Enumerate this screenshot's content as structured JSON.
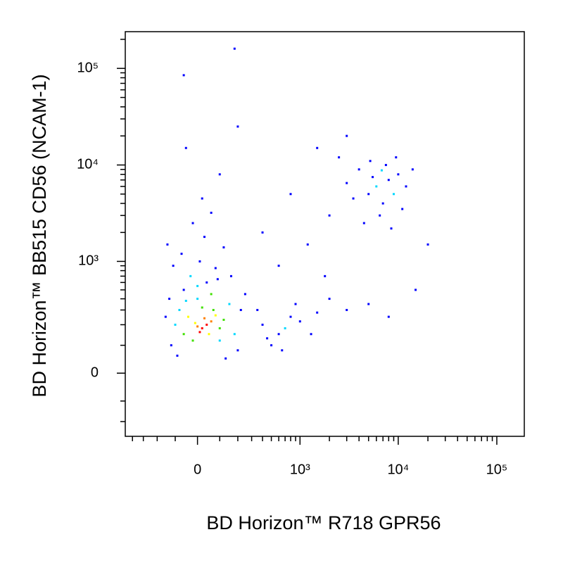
{
  "chart_data": {
    "type": "scatter",
    "xlabel": "BD Horizon™ R718 GPR56",
    "ylabel": "BD Horizon™ BB515 CD56 (NCAM-1)",
    "xscale": "biexponential",
    "yscale": "biexponential",
    "xlim": [
      -480,
      190000
    ],
    "ylim": [
      -300,
      240000
    ],
    "xticks": [
      0,
      {
        "value": 1000,
        "label": "10³"
      },
      {
        "value": 10000,
        "label": "10⁴"
      },
      {
        "value": 100000,
        "label": "10⁵"
      }
    ],
    "yticks": [
      0,
      {
        "value": 1000,
        "label": "10³"
      },
      {
        "value": 10000,
        "label": "10⁴"
      },
      {
        "value": 100000,
        "label": "10⁵"
      }
    ],
    "xminorticks": [
      -400,
      -300,
      -200,
      -100,
      100,
      200,
      300,
      400,
      500,
      600,
      700,
      800,
      900,
      2000,
      3000,
      4000,
      5000,
      6000,
      7000,
      8000,
      9000,
      20000,
      30000,
      40000,
      50000,
      60000,
      70000,
      80000,
      90000
    ],
    "yminorticks": [
      -200,
      -100,
      100,
      200,
      300,
      400,
      500,
      600,
      700,
      800,
      900,
      2000,
      3000,
      4000,
      5000,
      6000,
      7000,
      8000,
      9000,
      20000,
      30000,
      40000,
      50000,
      60000,
      70000,
      80000,
      90000,
      200000
    ],
    "x": [
      20,
      40,
      10,
      60,
      30,
      0,
      50,
      -10,
      -40,
      80,
      100,
      -60,
      20,
      70,
      -20,
      120,
      -80,
      150,
      -100,
      180,
      0,
      60,
      -50,
      100,
      -120,
      200,
      -150,
      220,
      -90,
      130,
      40,
      -30,
      80,
      10,
      -70,
      120,
      30,
      -20,
      60,
      -110,
      160,
      0,
      90,
      -60,
      250,
      -130,
      20,
      100,
      -50,
      200,
      400,
      600,
      800,
      500,
      700,
      1000,
      1300,
      350,
      900,
      1500,
      450,
      650,
      2000,
      3000,
      5000,
      8000,
      6000,
      8000,
      5000,
      7000,
      10000,
      4000,
      9000,
      12000,
      3500,
      6500,
      7500,
      5500,
      11000,
      4500,
      9500,
      3000,
      14000,
      8500,
      6800,
      5200,
      1500,
      2500,
      800,
      400,
      1200,
      600,
      2000,
      3000,
      -60,
      180,
      20000,
      15000,
      1800,
      -140
    ],
    "y": [
      180,
      200,
      160,
      220,
      240,
      190,
      150,
      210,
      250,
      260,
      180,
      150,
      320,
      300,
      120,
      230,
      300,
      350,
      200,
      150,
      400,
      450,
      380,
      120,
      100,
      80,
      250,
      300,
      60,
      50,
      600,
      700,
      850,
      1000,
      1200,
      1400,
      1800,
      2500,
      3200,
      900,
      700,
      550,
      650,
      500,
      450,
      400,
      4500,
      8000,
      15000,
      25000,
      200,
      150,
      250,
      100,
      180,
      220,
      150,
      300,
      350,
      280,
      130,
      80,
      400,
      300,
      350,
      250,
      6000,
      7000,
      5000,
      4000,
      8000,
      9000,
      5000,
      6000,
      4500,
      3000,
      10000,
      7500,
      3500,
      2500,
      12000,
      6500,
      9000,
      2200,
      8800,
      11000,
      15000,
      12000,
      5000,
      2000,
      1500,
      900,
      3000,
      20000,
      85000,
      160000,
      1500,
      500,
      700,
      1500
    ],
    "colors": [
      "#ff0000",
      "#ff0000",
      "#ff0000",
      "#ff8000",
      "#ff8000",
      "#ff8000",
      "#ffff00",
      "#ffff00",
      "#ffff00",
      "#ffff00",
      "#40e000",
      "#40e000",
      "#40e000",
      "#40e000",
      "#40e000",
      "#40e000",
      "#00d8ff",
      "#00d8ff",
      "#00d8ff",
      "#00d8ff",
      "#00d8ff",
      "#40e000",
      "#00d8ff",
      "#00d8ff",
      "#0000ff",
      "#0000ff",
      "#0000ff",
      "#0000ff",
      "#0000ff",
      "#0000ff",
      "#0000ff",
      "#00d8ff",
      "#0000ff",
      "#0000ff",
      "#0000ff",
      "#0000ff",
      "#0000ff",
      "#0000ff",
      "#0000ff",
      "#0000ff",
      "#0000ff",
      "#00d8ff",
      "#0000ff",
      "#0000ff",
      "#0000ff",
      "#0000ff",
      "#0000ff",
      "#0000ff",
      "#0000ff",
      "#0000ff",
      "#0000ff",
      "#0000ff",
      "#0000ff",
      "#0000ff",
      "#00d8ff",
      "#0000ff",
      "#0000ff",
      "#0000ff",
      "#0000ff",
      "#0000ff",
      "#0000ff",
      "#0000ff",
      "#0000ff",
      "#0000ff",
      "#0000ff",
      "#0000ff",
      "#00d8ff",
      "#0000ff",
      "#0000ff",
      "#0000ff",
      "#0000ff",
      "#0000ff",
      "#00d8ff",
      "#0000ff",
      "#0000ff",
      "#0000ff",
      "#0000ff",
      "#0000ff",
      "#0000ff",
      "#0000ff",
      "#0000ff",
      "#0000ff",
      "#0000ff",
      "#0000ff",
      "#00d8ff",
      "#0000ff",
      "#0000ff",
      "#0000ff",
      "#0000ff",
      "#0000ff",
      "#0000ff",
      "#0000ff",
      "#0000ff",
      "#0000ff",
      "#0000ff",
      "#0000ff",
      "#0000ff",
      "#0000ff",
      "#0000ff",
      "#0000ff"
    ]
  }
}
